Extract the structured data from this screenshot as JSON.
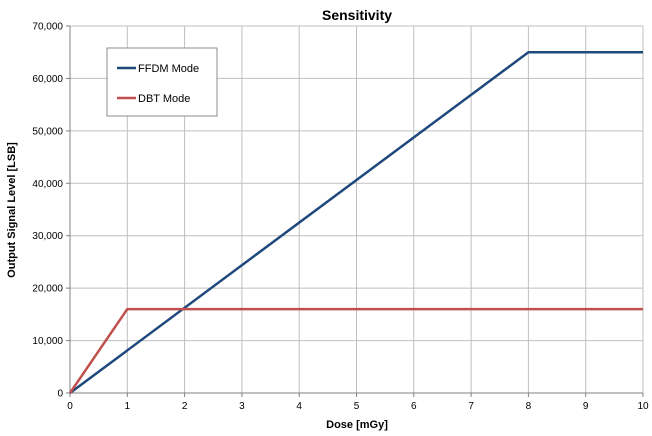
{
  "chart_data": {
    "type": "line",
    "title": "Sensitivity",
    "xlabel": "Dose [mGy]",
    "ylabel": "Output Signal Level [LSB]",
    "xlim": [
      0,
      10
    ],
    "ylim": [
      0,
      70000
    ],
    "x_ticks": [
      0,
      1,
      2,
      3,
      4,
      5,
      6,
      7,
      8,
      9,
      10
    ],
    "x_tick_labels": [
      "0",
      "1",
      "2",
      "3",
      "4",
      "5",
      "6",
      "7",
      "8",
      "9",
      "10"
    ],
    "y_ticks": [
      0,
      10000,
      20000,
      30000,
      40000,
      50000,
      60000,
      70000
    ],
    "y_tick_labels": [
      "0",
      "10,000",
      "20,000",
      "30,000",
      "40,000",
      "50,000",
      "60,000",
      "70,000"
    ],
    "grid": true,
    "legend_position": "top-left",
    "series": [
      {
        "name": "FFDM Mode",
        "color": "#1f497d",
        "points": [
          [
            0,
            0
          ],
          [
            8,
            65000
          ],
          [
            10,
            65000
          ]
        ]
      },
      {
        "name": "DBT Mode",
        "color": "#c0504d",
        "points": [
          [
            0,
            0
          ],
          [
            1,
            16000
          ],
          [
            10,
            16000
          ]
        ]
      }
    ]
  }
}
